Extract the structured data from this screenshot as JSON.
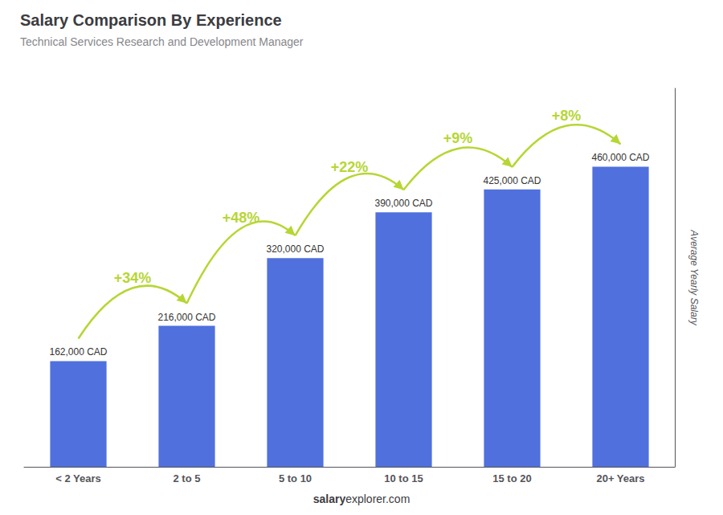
{
  "chart_data": {
    "type": "bar",
    "title": "Salary Comparison By Experience",
    "subtitle": "Technical Services Research and Development Manager",
    "ylabel": "Average Yearly Salary",
    "categories": [
      "< 2 Years",
      "2 to 5",
      "5 to 10",
      "10 to 15",
      "15 to 20",
      "20+ Years"
    ],
    "values": [
      162000,
      216000,
      320000,
      390000,
      425000,
      460000
    ],
    "value_labels": [
      "162,000 CAD",
      "216,000 CAD",
      "320,000 CAD",
      "390,000 CAD",
      "425,000 CAD",
      "460,000 CAD"
    ],
    "data_labels": true,
    "annotations": [
      {
        "text": "+34%",
        "from": "< 2 Years",
        "to": "2 to 5"
      },
      {
        "text": "+48%",
        "from": "2 to 5",
        "to": "5 to 10"
      },
      {
        "text": "+22%",
        "from": "5 to 10",
        "to": "10 to 15"
      },
      {
        "text": "+9%",
        "from": "10 to 15",
        "to": "15 to 20"
      },
      {
        "text": "+8%",
        "from": "15 to 20",
        "to": "20+ Years"
      }
    ],
    "footer": [
      "salary",
      "explorer.com"
    ],
    "ylim": [
      0,
      580000
    ],
    "tick_labels": "x",
    "grid": false
  }
}
